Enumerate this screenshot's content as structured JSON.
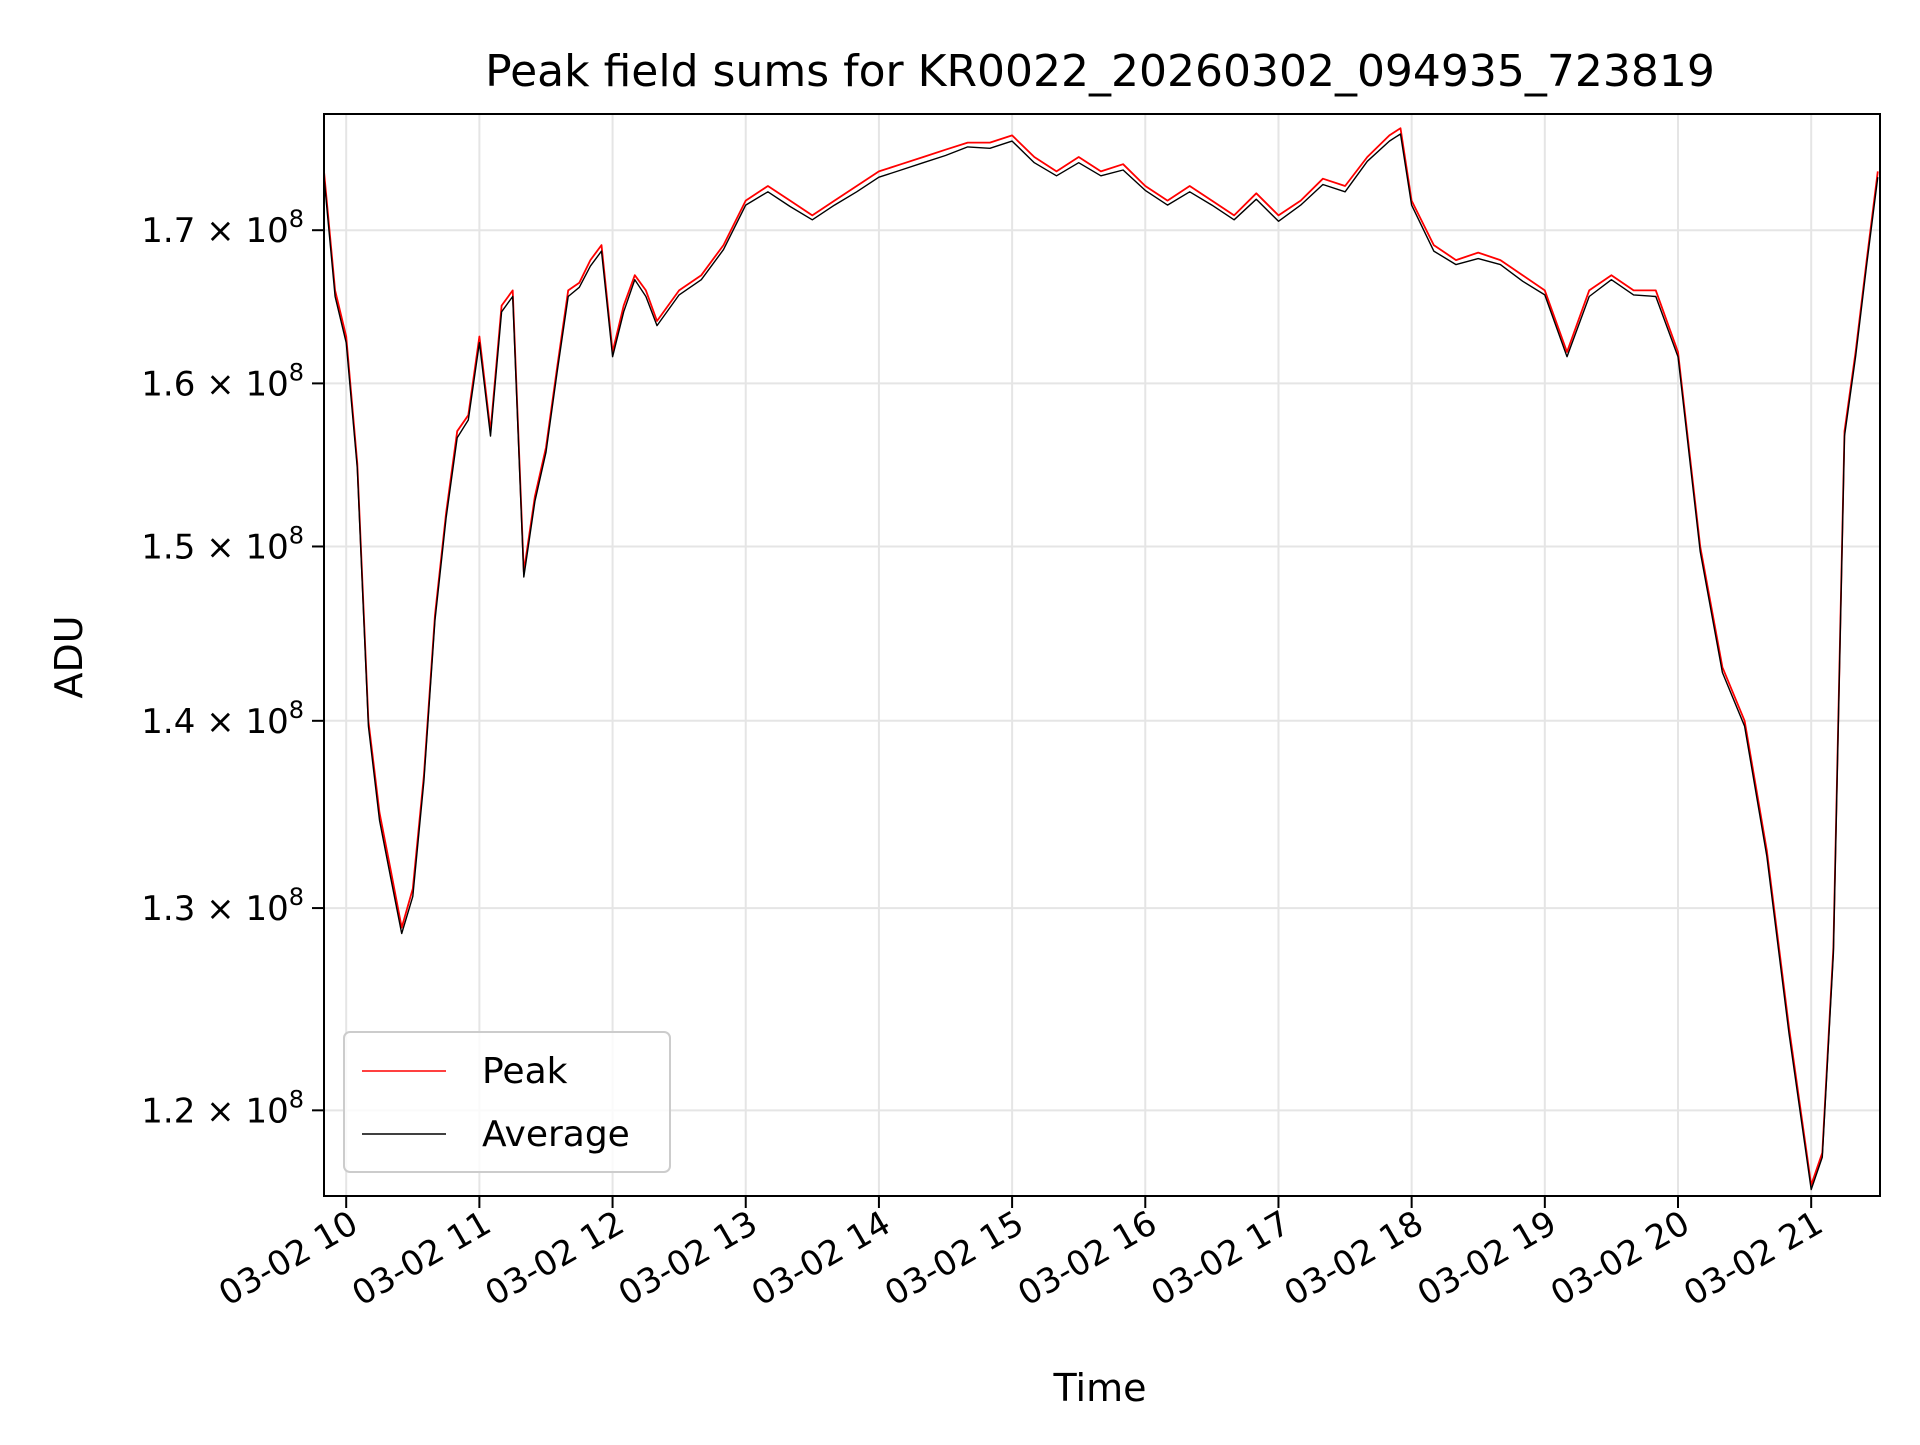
{
  "chart_data": {
    "type": "line",
    "title": "Peak field sums for KR0022_20260302_094935_723819",
    "xlabel": "Time",
    "ylabel": "ADU",
    "y_scale": "log",
    "xlim": [
      "2026-03-02 09:50",
      "2026-03-02 21:31"
    ],
    "ylim": [
      116000000,
      178000000
    ],
    "x_ticks": [
      {
        "label": "03-02 10",
        "time": "2026-03-02 10:00"
      },
      {
        "label": "03-02 11",
        "time": "2026-03-02 11:00"
      },
      {
        "label": "03-02 12",
        "time": "2026-03-02 12:00"
      },
      {
        "label": "03-02 13",
        "time": "2026-03-02 13:00"
      },
      {
        "label": "03-02 14",
        "time": "2026-03-02 14:00"
      },
      {
        "label": "03-02 15",
        "time": "2026-03-02 15:00"
      },
      {
        "label": "03-02 16",
        "time": "2026-03-02 16:00"
      },
      {
        "label": "03-02 17",
        "time": "2026-03-02 17:00"
      },
      {
        "label": "03-02 18",
        "time": "2026-03-02 18:00"
      },
      {
        "label": "03-02 19",
        "time": "2026-03-02 19:00"
      },
      {
        "label": "03-02 20",
        "time": "2026-03-02 20:00"
      },
      {
        "label": "03-02 21",
        "time": "2026-03-02 21:00"
      }
    ],
    "y_ticks": [
      {
        "value": 120000000,
        "mantissa": "1.2"
      },
      {
        "value": 130000000,
        "mantissa": "1.3"
      },
      {
        "value": 140000000,
        "mantissa": "1.4"
      },
      {
        "value": 150000000,
        "mantissa": "1.5"
      },
      {
        "value": 160000000,
        "mantissa": "1.6"
      },
      {
        "value": 170000000,
        "mantissa": "1.7"
      }
    ],
    "y_tick_base": "10",
    "y_tick_exponent": "8",
    "grid": true,
    "legend_position": "lower-left",
    "x": [
      "09:50",
      "09:55",
      "10:00",
      "10:05",
      "10:10",
      "10:15",
      "10:20",
      "10:25",
      "10:30",
      "10:35",
      "10:40",
      "10:45",
      "10:50",
      "10:55",
      "11:00",
      "11:05",
      "11:10",
      "11:15",
      "11:20",
      "11:25",
      "11:30",
      "11:35",
      "11:40",
      "11:45",
      "11:50",
      "11:55",
      "12:00",
      "12:05",
      "12:10",
      "12:15",
      "12:20",
      "12:30",
      "12:40",
      "12:50",
      "13:00",
      "13:10",
      "13:20",
      "13:30",
      "13:40",
      "13:50",
      "14:00",
      "14:10",
      "14:20",
      "14:30",
      "14:40",
      "14:50",
      "15:00",
      "15:10",
      "15:20",
      "15:30",
      "15:40",
      "15:50",
      "16:00",
      "16:10",
      "16:20",
      "16:30",
      "16:40",
      "16:50",
      "17:00",
      "17:10",
      "17:20",
      "17:30",
      "17:40",
      "17:50",
      "17:55",
      "18:00",
      "18:10",
      "18:20",
      "18:30",
      "18:40",
      "18:50",
      "19:00",
      "19:10",
      "19:20",
      "19:30",
      "19:40",
      "19:50",
      "20:00",
      "20:10",
      "20:20",
      "20:30",
      "20:40",
      "20:50",
      "21:00",
      "21:05",
      "21:10",
      "21:15",
      "21:20",
      "21:25",
      "21:30"
    ],
    "series": [
      {
        "name": "Peak",
        "color": "#ff0000",
        "values": [
          174000000,
          166000000,
          163000000,
          155000000,
          140000000,
          135000000,
          132000000,
          129000000,
          131000000,
          137000000,
          146000000,
          152000000,
          157000000,
          158000000,
          163000000,
          157000000,
          165000000,
          166000000,
          148500000,
          153000000,
          156000000,
          161000000,
          166000000,
          166500000,
          168000000,
          169000000,
          162000000,
          165000000,
          167000000,
          166000000,
          164000000,
          166000000,
          167000000,
          169000000,
          172000000,
          173000000,
          172000000,
          171000000,
          172000000,
          173000000,
          174000000,
          174500000,
          175000000,
          175500000,
          176000000,
          176000000,
          176500000,
          175000000,
          174000000,
          175000000,
          174000000,
          174500000,
          173000000,
          172000000,
          173000000,
          172000000,
          171000000,
          172500000,
          171000000,
          172000000,
          173500000,
          173000000,
          175000000,
          176500000,
          177000000,
          172000000,
          169000000,
          168000000,
          168500000,
          168000000,
          167000000,
          166000000,
          162000000,
          166000000,
          167000000,
          166000000,
          166000000,
          162000000,
          150000000,
          143000000,
          140000000,
          133000000,
          124000000,
          116500000,
          118000000,
          128000000,
          157000000,
          162000000,
          168000000,
          174000000
        ]
      },
      {
        "name": "Average",
        "color": "#000000",
        "values": [
          173600000,
          165600000,
          162600000,
          154700000,
          139700000,
          134600000,
          131600000,
          128700000,
          130600000,
          136700000,
          145700000,
          151700000,
          156600000,
          157700000,
          162600000,
          156700000,
          164600000,
          165600000,
          148200000,
          152700000,
          155700000,
          160700000,
          165600000,
          166200000,
          167600000,
          168600000,
          161700000,
          164600000,
          166700000,
          165600000,
          163700000,
          165700000,
          166700000,
          168700000,
          171700000,
          172600000,
          171600000,
          170700000,
          171700000,
          172600000,
          173600000,
          174100000,
          174600000,
          175100000,
          175700000,
          175600000,
          176100000,
          174600000,
          173700000,
          174600000,
          173700000,
          174100000,
          172700000,
          171700000,
          172600000,
          171700000,
          170700000,
          172100000,
          170600000,
          171700000,
          173100000,
          172600000,
          174700000,
          176100000,
          176600000,
          171700000,
          168600000,
          167700000,
          168100000,
          167700000,
          166600000,
          165700000,
          161700000,
          165600000,
          166700000,
          165700000,
          165600000,
          161700000,
          149700000,
          142700000,
          139700000,
          132700000,
          123700000,
          116300000,
          117800000,
          127700000,
          156700000,
          161700000,
          167700000,
          173600000
        ]
      }
    ]
  }
}
